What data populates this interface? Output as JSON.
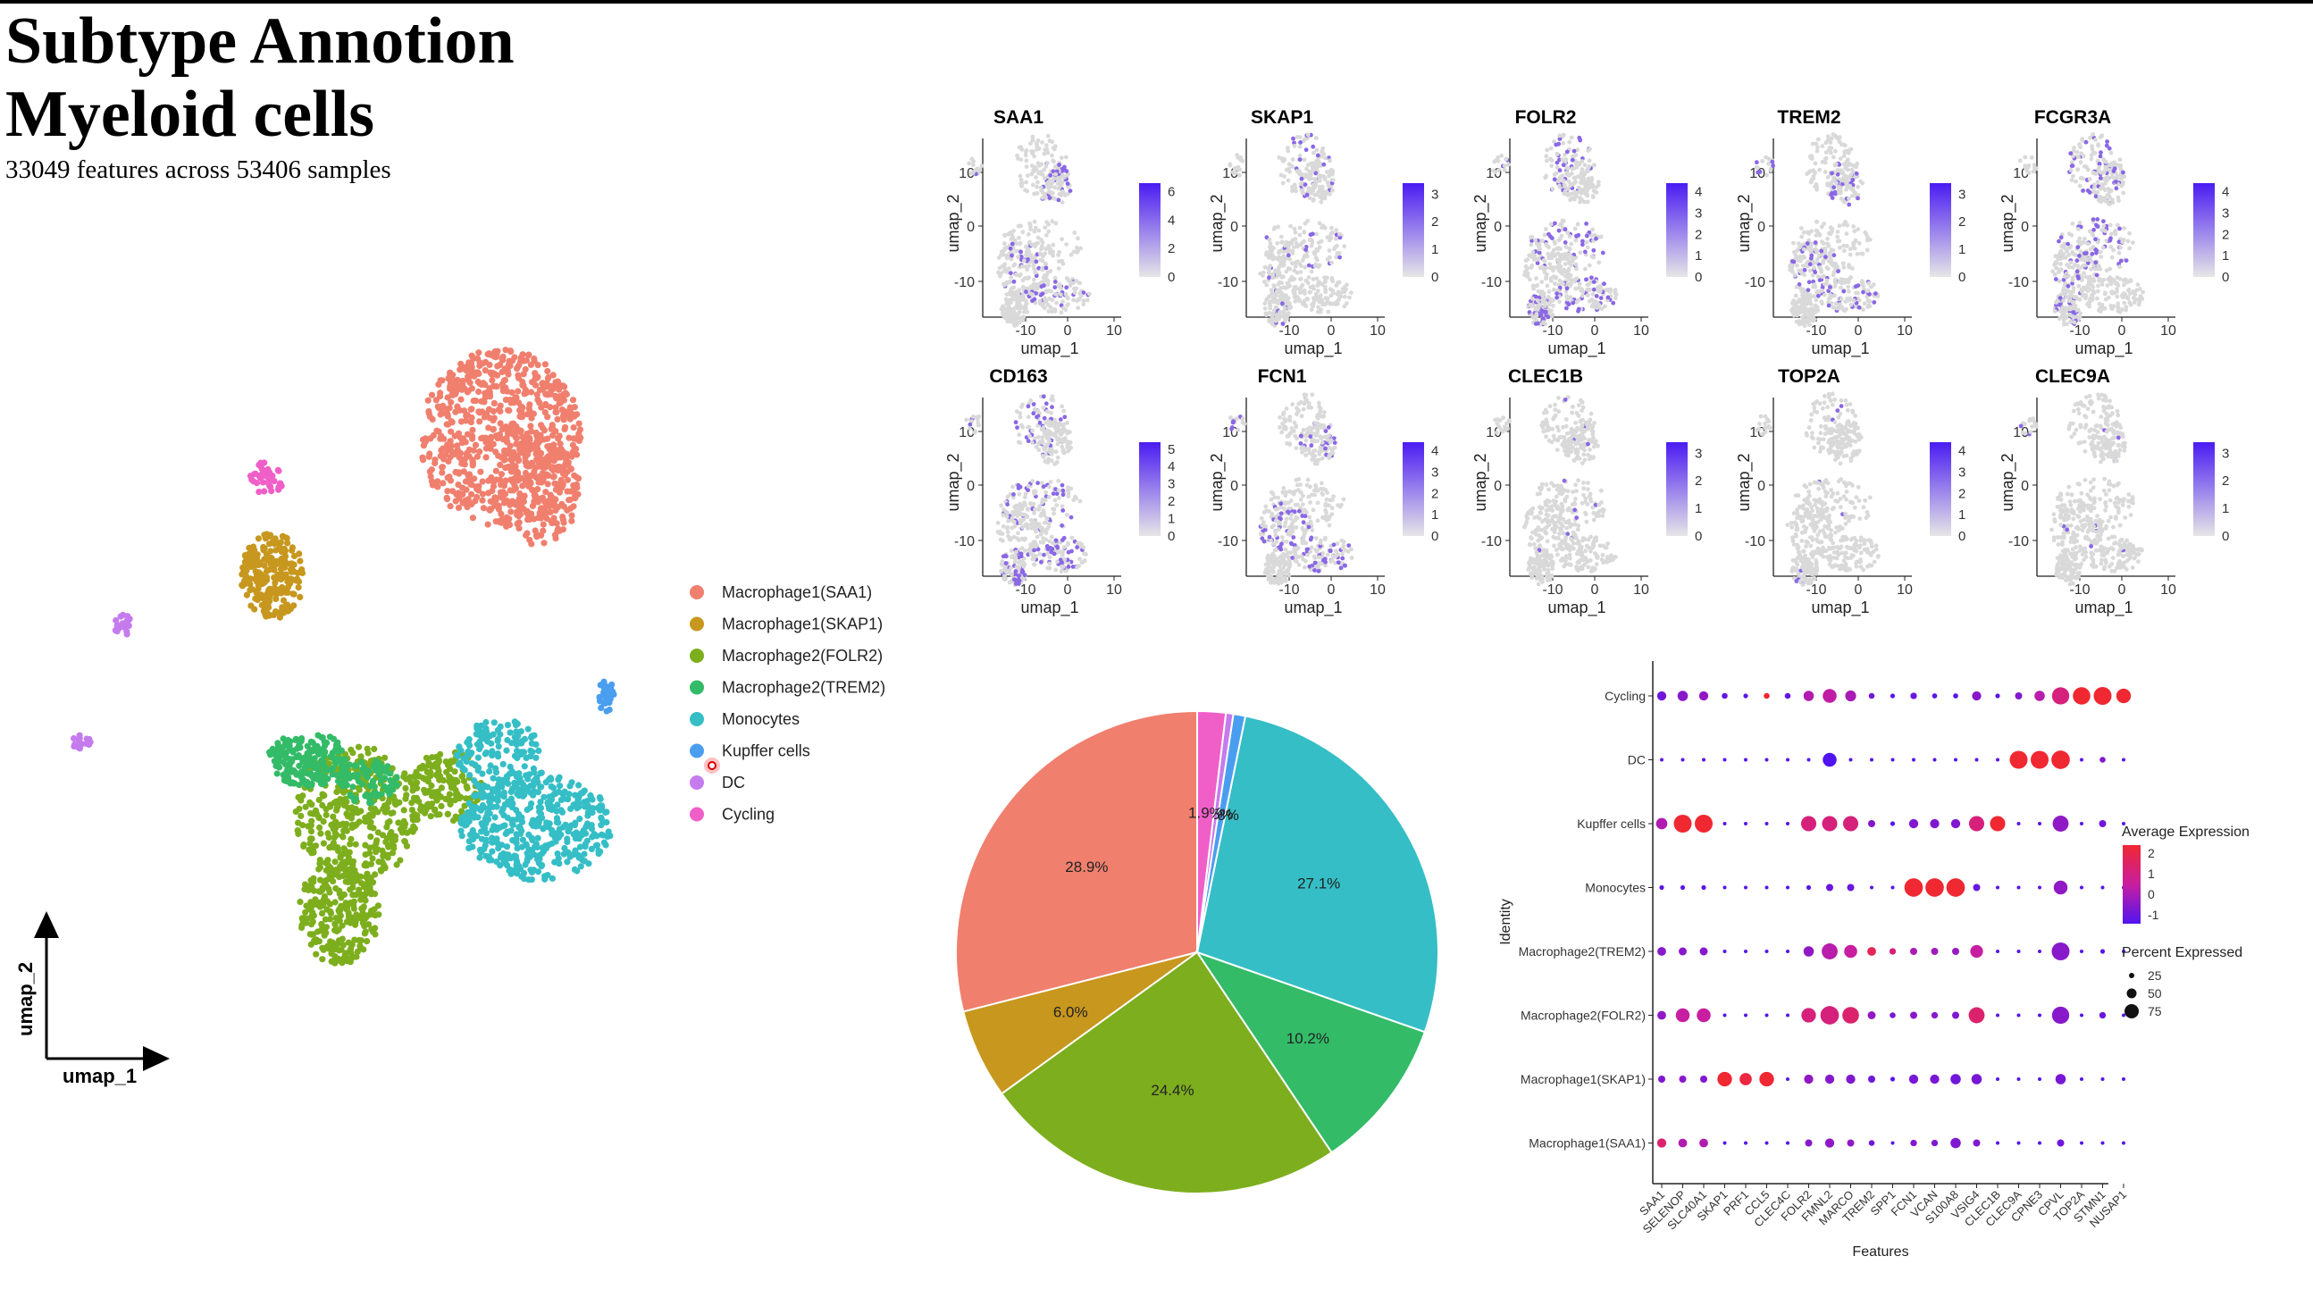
{
  "page": {
    "title_line1": "Subtype  Annotion",
    "title_line2": "Myeloid cells",
    "subtitle": "33049 features across 53406 samples"
  },
  "colors": {
    "Macrophage1(SAA1)": "#F07F6E",
    "Macrophage1(SKAP1)": "#C7971E",
    "Macrophage2(FOLR2)": "#7DAE1D",
    "Macrophage2(TREM2)": "#33BB68",
    "Monocytes": "#35BEC6",
    "Kupffer cells": "#4A9EF0",
    "DC": "#C57BEE",
    "Cycling": "#F05FC8"
  },
  "chart_data": [
    {
      "type": "scatter",
      "xlabel": "umap_1",
      "ylabel": "umap_2",
      "legend_position": "right",
      "legend": [
        "Macrophage1(SAA1)",
        "Macrophage1(SKAP1)",
        "Macrophage2(FOLR2)",
        "Macrophage2(TREM2)",
        "Monocytes",
        "Kupffer cells",
        "DC",
        "Cycling"
      ]
    },
    {
      "type": "scatter",
      "panels": [
        {
          "title": "SAA1",
          "scale": [
            0,
            2,
            4,
            6
          ]
        },
        {
          "title": "SKAP1",
          "scale": [
            0,
            1,
            2,
            3
          ]
        },
        {
          "title": "FOLR2",
          "scale": [
            0,
            1,
            2,
            3,
            4
          ]
        },
        {
          "title": "TREM2",
          "scale": [
            0,
            1,
            2,
            3
          ]
        },
        {
          "title": "FCGR3A",
          "scale": [
            0,
            1,
            2,
            3,
            4
          ]
        },
        {
          "title": "CD163",
          "scale": [
            0,
            1,
            2,
            3,
            4,
            5
          ]
        },
        {
          "title": "FCN1",
          "scale": [
            0,
            1,
            2,
            3,
            4
          ]
        },
        {
          "title": "CLEC1B",
          "scale": [
            0,
            1,
            2,
            3
          ]
        },
        {
          "title": "TOP2A",
          "scale": [
            0,
            1,
            2,
            3,
            4
          ]
        },
        {
          "title": "CLEC9A",
          "scale": [
            0,
            1,
            2,
            3
          ]
        }
      ],
      "xlabel": "umap_1",
      "ylabel": "umap_2",
      "x_ticks": [
        -10,
        0,
        10
      ],
      "y_ticks": [
        10,
        0,
        -10
      ]
    },
    {
      "type": "pie",
      "slices": [
        {
          "name": "Macrophage1(SAA1)",
          "value": 28.9,
          "label": "28.9%"
        },
        {
          "name": "Macrophage1(SKAP1)",
          "value": 6.0,
          "label": "6.0%"
        },
        {
          "name": "Macrophage2(FOLR2)",
          "value": 24.4,
          "label": "24.4%"
        },
        {
          "name": "Macrophage2(TREM2)",
          "value": 10.2,
          "label": "10.2%"
        },
        {
          "name": "Monocytes",
          "value": 27.1,
          "label": "27.1%"
        },
        {
          "name": "Kupffer cells",
          "value": 0.8,
          "label": "0.8%"
        },
        {
          "name": "DC",
          "value": 0.5,
          "label": "0.5%"
        },
        {
          "name": "Cycling",
          "value": 1.9,
          "label": "1.9%"
        }
      ]
    },
    {
      "type": "scatter",
      "subtype": "dotplot",
      "xlabel": "Features",
      "ylabel": "Identity",
      "features": [
        "SAA1",
        "SELENOP",
        "SLC40A1",
        "SKAP1",
        "PRF1",
        "CCL5",
        "CLEC4C",
        "FOLR2",
        "FMNL2",
        "MARCO",
        "TREM2",
        "SPP1",
        "FCN1",
        "VCAN",
        "S100A8",
        "VSIG4",
        "CLEC1B",
        "CLEC9A",
        "CPNE3",
        "CPVL",
        "TOP2A",
        "STMN1",
        "NUSAP1"
      ],
      "identities": [
        "Cycling",
        "DC",
        "Kupffer cells",
        "Monocytes",
        "Macrophage2(TREM2)",
        "Macrophage2(FOLR2)",
        "Macrophage1(SKAP1)",
        "Macrophage1(SAA1)"
      ],
      "avg_expression": [
        [
          -0.6,
          -0.3,
          -0.2,
          -0.8,
          -0.9,
          2,
          -0.8,
          0.2,
          0.4,
          0.1,
          -0.6,
          -0.9,
          -0.7,
          -0.9,
          -0.9,
          -0.3,
          -0.9,
          -0.4,
          0.3,
          1,
          2,
          2,
          2
        ],
        [
          -0.9,
          -0.9,
          -0.9,
          -0.9,
          -0.9,
          -0.9,
          -0.9,
          -0.9,
          -1,
          -0.9,
          -0.9,
          -0.9,
          -0.9,
          -0.9,
          -0.9,
          -0.9,
          -0.9,
          2,
          2,
          2,
          -0.9,
          -0.4,
          -0.9
        ],
        [
          0.2,
          2,
          2,
          -0.9,
          -0.9,
          -0.9,
          -0.9,
          1,
          1,
          1,
          -0.4,
          -0.9,
          -0.4,
          -0.4,
          -0.4,
          1,
          2,
          -0.9,
          -0.9,
          -0.2,
          -0.9,
          -0.6,
          -0.9
        ],
        [
          -0.9,
          -0.9,
          -0.9,
          -0.9,
          -0.9,
          -0.9,
          -0.9,
          -0.9,
          -0.7,
          -0.7,
          -0.9,
          -0.9,
          2,
          2,
          2,
          -0.7,
          -0.9,
          -0.9,
          -0.9,
          -0.2,
          -0.9,
          -0.9,
          -0.9
        ],
        [
          -0.3,
          -0.3,
          -0.3,
          -0.9,
          -0.9,
          -0.9,
          -0.9,
          -0.2,
          0.3,
          0.5,
          1.5,
          1,
          0.1,
          0,
          -0.1,
          0.5,
          -0.9,
          -0.9,
          -0.9,
          -0.3,
          -0.9,
          -0.9,
          -0.9
        ],
        [
          -0.2,
          0.5,
          0.5,
          -0.9,
          -0.9,
          -0.9,
          -0.9,
          1,
          1,
          1.2,
          -0.2,
          -0.5,
          -0.3,
          -0.3,
          -0.4,
          1.2,
          -0.9,
          -0.9,
          -0.9,
          -0.3,
          -0.9,
          -0.7,
          -0.9
        ],
        [
          -0.4,
          -0.3,
          -0.4,
          2,
          1.8,
          2,
          -0.9,
          -0.2,
          -0.3,
          -0.4,
          -0.6,
          -0.9,
          -0.5,
          -0.5,
          -0.6,
          -0.5,
          -0.9,
          -0.9,
          -0.9,
          -0.5,
          -0.9,
          -0.9,
          -0.9
        ],
        [
          1.2,
          0.2,
          0.2,
          -0.9,
          -0.9,
          -0.9,
          -0.9,
          -0.3,
          -0.2,
          -0.2,
          -0.6,
          -0.9,
          -0.4,
          -0.4,
          -0.4,
          -0.4,
          -0.9,
          -0.9,
          -0.9,
          -0.6,
          -0.9,
          -0.9,
          -0.9
        ]
      ],
      "pct_expressed": [
        [
          20,
          25,
          20,
          8,
          5,
          8,
          8,
          25,
          45,
          28,
          8,
          5,
          10,
          6,
          6,
          20,
          5,
          12,
          25,
          70,
          72,
          75,
          50
        ],
        [
          3,
          3,
          3,
          3,
          3,
          3,
          3,
          3,
          45,
          3,
          3,
          3,
          3,
          3,
          3,
          3,
          3,
          75,
          75,
          80,
          3,
          8,
          3
        ],
        [
          30,
          75,
          75,
          3,
          3,
          3,
          3,
          55,
          55,
          55,
          12,
          5,
          20,
          20,
          20,
          55,
          55,
          3,
          3,
          60,
          3,
          12,
          3
        ],
        [
          5,
          5,
          5,
          3,
          3,
          3,
          3,
          5,
          12,
          12,
          3,
          3,
          80,
          80,
          80,
          12,
          3,
          3,
          3,
          45,
          3,
          3,
          3
        ],
        [
          18,
          15,
          15,
          3,
          3,
          3,
          3,
          25,
          60,
          40,
          18,
          10,
          12,
          12,
          12,
          38,
          3,
          3,
          3,
          75,
          3,
          5,
          3
        ],
        [
          18,
          45,
          45,
          3,
          3,
          3,
          3,
          50,
          80,
          65,
          15,
          8,
          12,
          10,
          12,
          60,
          3,
          3,
          3,
          70,
          3,
          10,
          3
        ],
        [
          12,
          12,
          12,
          50,
          35,
          50,
          3,
          20,
          20,
          20,
          12,
          5,
          20,
          20,
          25,
          25,
          3,
          3,
          3,
          25,
          3,
          3,
          3
        ],
        [
          20,
          18,
          18,
          3,
          3,
          3,
          3,
          12,
          20,
          12,
          8,
          3,
          10,
          10,
          25,
          12,
          3,
          3,
          3,
          12,
          3,
          3,
          3
        ]
      ],
      "color_legend_title": "Average Expression",
      "color_ticks": [
        2,
        1,
        0,
        -1
      ],
      "size_legend_title": "Percent Expressed",
      "size_ticks": [
        25,
        50,
        75
      ]
    }
  ]
}
